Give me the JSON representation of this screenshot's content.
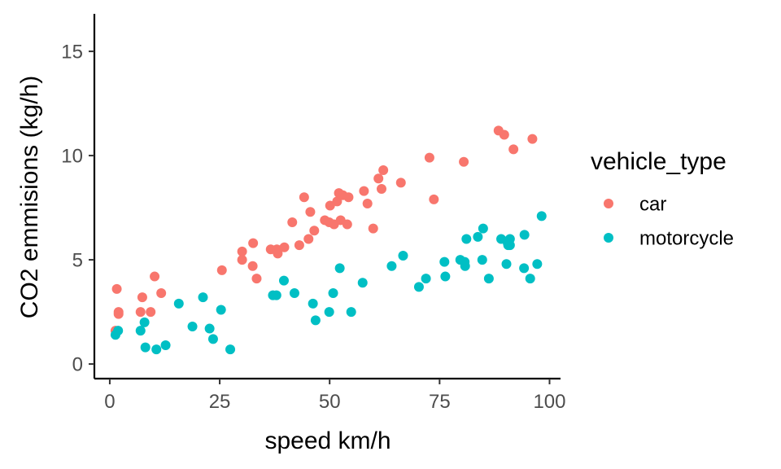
{
  "chart_data": {
    "type": "scatter",
    "title": "",
    "xlabel": "speed km/h",
    "ylabel": "CO2 emmisions (kg/h)",
    "xlim": [
      -3.5,
      102.5
    ],
    "ylim": [
      -0.7,
      16.8
    ],
    "xticks": [
      0,
      25,
      50,
      75,
      100
    ],
    "yticks": [
      0,
      5,
      10,
      15
    ],
    "grid": false,
    "legend": {
      "title": "vehicle_type",
      "position": "right"
    },
    "series": [
      {
        "name": "car",
        "color": "#F8766D",
        "points": [
          [
            1.3,
            1.6
          ],
          [
            1.6,
            3.6
          ],
          [
            2.0,
            2.4
          ],
          [
            2.0,
            2.5
          ],
          [
            7.0,
            2.5
          ],
          [
            7.4,
            3.2
          ],
          [
            9.3,
            2.5
          ],
          [
            10.2,
            4.2
          ],
          [
            11.7,
            3.4
          ],
          [
            25.5,
            4.5
          ],
          [
            30.1,
            5.4
          ],
          [
            30.1,
            5.0
          ],
          [
            32.5,
            4.7
          ],
          [
            32.6,
            5.8
          ],
          [
            33.4,
            4.1
          ],
          [
            36.6,
            5.5
          ],
          [
            38.0,
            5.5
          ],
          [
            38.2,
            5.3
          ],
          [
            39.7,
            5.6
          ],
          [
            41.5,
            6.8
          ],
          [
            43.1,
            5.7
          ],
          [
            44.2,
            8.0
          ],
          [
            45.2,
            6.0
          ],
          [
            45.6,
            7.3
          ],
          [
            46.5,
            6.4
          ],
          [
            48.9,
            6.9
          ],
          [
            49.9,
            6.8
          ],
          [
            50.1,
            7.6
          ],
          [
            51.0,
            6.7
          ],
          [
            51.7,
            7.8
          ],
          [
            52.1,
            8.2
          ],
          [
            52.5,
            6.9
          ],
          [
            53.0,
            8.1
          ],
          [
            54.0,
            6.7
          ],
          [
            54.3,
            8.0
          ],
          [
            57.8,
            8.3
          ],
          [
            58.6,
            7.7
          ],
          [
            59.9,
            6.5
          ],
          [
            61.1,
            8.9
          ],
          [
            61.8,
            8.4
          ],
          [
            62.2,
            9.3
          ],
          [
            66.2,
            8.7
          ],
          [
            72.7,
            9.9
          ],
          [
            73.7,
            7.9
          ],
          [
            80.5,
            9.7
          ],
          [
            88.4,
            11.2
          ],
          [
            89.7,
            11.0
          ],
          [
            91.8,
            10.3
          ],
          [
            96.1,
            10.8
          ]
        ]
      },
      {
        "name": "motorcycle",
        "color": "#00BFC4",
        "points": [
          [
            1.3,
            1.4
          ],
          [
            1.9,
            1.6
          ],
          [
            7.0,
            1.6
          ],
          [
            7.9,
            2.0
          ],
          [
            8.1,
            0.8
          ],
          [
            10.6,
            0.7
          ],
          [
            12.7,
            0.9
          ],
          [
            15.7,
            2.9
          ],
          [
            18.8,
            1.8
          ],
          [
            21.2,
            3.2
          ],
          [
            22.7,
            1.7
          ],
          [
            23.5,
            1.2
          ],
          [
            25.3,
            2.6
          ],
          [
            27.4,
            0.7
          ],
          [
            37.1,
            3.3
          ],
          [
            37.9,
            3.3
          ],
          [
            39.6,
            4.0
          ],
          [
            42.0,
            3.4
          ],
          [
            46.2,
            2.9
          ],
          [
            46.8,
            2.1
          ],
          [
            49.9,
            2.5
          ],
          [
            50.8,
            3.4
          ],
          [
            52.3,
            4.6
          ],
          [
            54.9,
            2.5
          ],
          [
            57.5,
            3.9
          ],
          [
            64.1,
            4.7
          ],
          [
            66.7,
            5.2
          ],
          [
            70.3,
            3.7
          ],
          [
            71.9,
            4.1
          ],
          [
            76.1,
            4.9
          ],
          [
            76.3,
            4.2
          ],
          [
            79.7,
            5.0
          ],
          [
            80.7,
            4.9
          ],
          [
            80.8,
            4.7
          ],
          [
            81.1,
            6.0
          ],
          [
            83.7,
            6.1
          ],
          [
            84.7,
            5.0
          ],
          [
            84.9,
            6.5
          ],
          [
            86.2,
            4.1
          ],
          [
            89.0,
            6.0
          ],
          [
            90.2,
            4.8
          ],
          [
            90.5,
            5.8
          ],
          [
            90.6,
            5.7
          ],
          [
            91.0,
            6.0
          ],
          [
            91.0,
            5.7
          ],
          [
            94.3,
            6.2
          ],
          [
            94.2,
            4.6
          ],
          [
            95.6,
            4.1
          ],
          [
            97.2,
            4.8
          ],
          [
            98.2,
            7.1
          ]
        ]
      }
    ]
  }
}
